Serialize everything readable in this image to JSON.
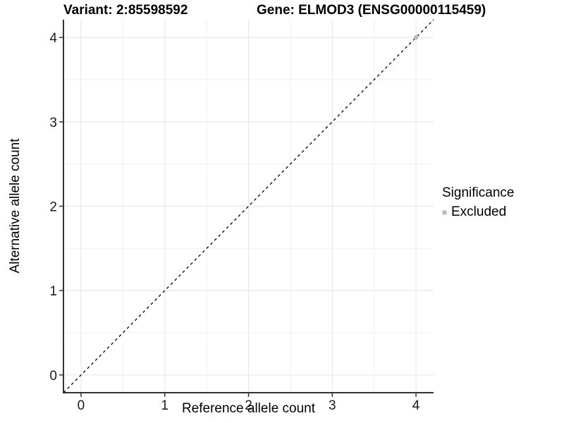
{
  "header": {
    "variant_title": "Variant: 2:85598592",
    "gene_title": "Gene: ELMOD3 (ENSG00000115459)"
  },
  "chart_data": {
    "type": "scatter",
    "titles": {
      "left": "Variant: 2:85598592",
      "right": "Gene: ELMOD3 (ENSG00000115459)"
    },
    "xlabel": "Reference allele count",
    "ylabel": "Alternative allele count",
    "xlim": [
      -0.21,
      4.21
    ],
    "ylim": [
      -0.21,
      4.21
    ],
    "x_ticks": [
      0,
      1,
      2,
      3,
      4
    ],
    "y_ticks": [
      0,
      1,
      2,
      3,
      4
    ],
    "minor_grid_step": 0.5,
    "grid": true,
    "identity_line": {
      "style": "dashed",
      "color": "#000000",
      "from": -0.21,
      "to": 4.21
    },
    "series": [
      {
        "name": "Excluded",
        "color": "#bdbdbd",
        "points": [
          [
            4,
            4
          ]
        ]
      }
    ],
    "legend": {
      "title": "Significance",
      "position": "right",
      "entries": [
        {
          "label": "Excluded",
          "color": "#bdbdbd",
          "marker": "circle"
        }
      ]
    }
  },
  "colors": {
    "background": "#ffffff",
    "grid_major": "#e4e4e4",
    "grid_minor": "#f1f1f1",
    "axis_line": "#333333",
    "tick_mark": "#333333",
    "tick_text": "#1a1a1a",
    "point": "#bdbdbd"
  }
}
